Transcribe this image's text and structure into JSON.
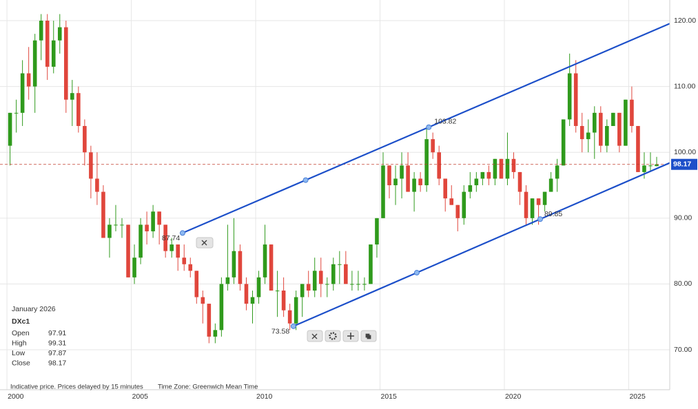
{
  "chart_data": {
    "type": "candlestick",
    "up_color": "#2f9a1c",
    "down_color": "#e0463c",
    "grid": true,
    "xlim": [
      1999.72,
      2026.65
    ],
    "xticks": [
      2000,
      2005,
      2010,
      2015,
      2020,
      2025
    ],
    "ylim": [
      64.04,
      123.14
    ],
    "yticks": [
      {
        "value": 70,
        "label": "70.00"
      },
      {
        "value": 80,
        "label": "80.00"
      },
      {
        "value": 90,
        "label": "90.00"
      },
      {
        "value": 100,
        "label": "100.00"
      },
      {
        "value": 110,
        "label": "110.00"
      },
      {
        "value": 120,
        "label": "120.00"
      }
    ],
    "x": [
      2000,
      2000.25,
      2000.5,
      2000.75,
      2001,
      2001.25,
      2001.5,
      2001.75,
      2002,
      2002.25,
      2002.5,
      2002.75,
      2003,
      2003.25,
      2003.5,
      2003.75,
      2004,
      2004.25,
      2004.5,
      2004.75,
      2005,
      2005.25,
      2005.5,
      2005.75,
      2006,
      2006.25,
      2006.5,
      2006.75,
      2007,
      2007.25,
      2007.5,
      2007.75,
      2008,
      2008.25,
      2008.5,
      2008.75,
      2009,
      2009.25,
      2009.5,
      2009.75,
      2010,
      2010.25,
      2010.5,
      2010.75,
      2011,
      2011.25,
      2011.5,
      2011.75,
      2012,
      2012.25,
      2012.5,
      2012.75,
      2013,
      2013.25,
      2013.5,
      2013.75,
      2014,
      2014.25,
      2014.5,
      2014.75,
      2015,
      2015.25,
      2015.5,
      2015.75,
      2016,
      2016.25,
      2016.5,
      2016.75,
      2017,
      2017.25,
      2017.5,
      2017.75,
      2018,
      2018.25,
      2018.5,
      2018.75,
      2019,
      2019.25,
      2019.5,
      2019.75,
      2020,
      2020.25,
      2020.5,
      2020.75,
      2021,
      2021.25,
      2021.5,
      2021.75,
      2022,
      2022.25,
      2022.5,
      2022.75,
      2023,
      2023.25,
      2023.5,
      2023.75,
      2024,
      2024.25,
      2024.5,
      2024.75,
      2025,
      2025.25,
      2025.5,
      2025.75,
      2026
    ],
    "ohlc": [
      [
        101,
        106,
        98,
        106
      ],
      [
        106,
        108,
        103,
        106
      ],
      [
        106,
        114,
        104,
        112
      ],
      [
        112,
        116,
        108,
        110
      ],
      [
        110,
        118,
        106,
        117
      ],
      [
        117,
        121,
        114,
        120
      ],
      [
        120,
        121,
        111,
        113
      ],
      [
        113,
        120,
        112,
        117
      ],
      [
        117,
        121,
        115,
        119
      ],
      [
        119,
        120,
        106,
        108
      ],
      [
        108,
        111,
        104,
        109
      ],
      [
        109,
        110,
        103,
        104
      ],
      [
        104,
        105,
        98,
        100
      ],
      [
        100,
        101,
        93,
        96
      ],
      [
        96,
        100,
        92,
        94
      ],
      [
        94,
        95,
        87,
        87
      ],
      [
        87,
        90,
        84,
        89
      ],
      [
        89,
        92,
        88,
        89
      ],
      [
        89,
        90,
        87,
        89
      ],
      [
        89,
        89,
        81,
        81
      ],
      [
        81,
        86,
        80,
        84
      ],
      [
        84,
        90,
        83,
        89
      ],
      [
        89,
        91,
        86,
        88
      ],
      [
        88,
        92,
        87,
        91
      ],
      [
        91,
        91,
        86,
        89
      ],
      [
        89,
        89,
        84,
        85
      ],
      [
        85,
        87,
        84,
        86
      ],
      [
        86,
        86,
        82,
        84
      ],
      [
        84,
        86,
        82,
        83
      ],
      [
        83,
        84,
        81,
        82
      ],
      [
        82,
        82,
        77,
        78
      ],
      [
        78,
        79,
        74,
        77
      ],
      [
        77,
        77,
        71,
        72
      ],
      [
        72,
        74,
        71,
        73
      ],
      [
        73,
        81,
        72,
        80
      ],
      [
        80,
        89,
        79,
        81
      ],
      [
        81,
        90,
        80,
        85
      ],
      [
        85,
        86,
        79,
        80
      ],
      [
        80,
        81,
        76,
        77
      ],
      [
        77,
        79,
        74,
        78
      ],
      [
        78,
        82,
        77,
        81
      ],
      [
        81,
        89,
        80,
        86
      ],
      [
        86,
        86,
        79,
        79
      ],
      [
        79,
        82,
        75,
        79
      ],
      [
        79,
        81,
        75,
        76
      ],
      [
        76,
        77,
        73,
        74
      ],
      [
        74,
        79,
        73,
        78
      ],
      [
        78,
        80,
        75,
        80
      ],
      [
        80,
        82,
        78,
        79
      ],
      [
        79,
        84,
        78,
        82
      ],
      [
        82,
        84,
        78,
        80
      ],
      [
        80,
        81,
        78,
        80
      ],
      [
        80,
        84,
        79,
        83
      ],
      [
        83,
        85,
        80,
        83
      ],
      [
        83,
        85,
        80,
        80
      ],
      [
        80,
        82,
        79,
        80
      ],
      [
        80,
        82,
        79,
        80
      ],
      [
        80,
        81,
        79,
        80
      ],
      [
        80,
        86,
        80,
        86
      ],
      [
        86,
        90,
        84,
        90
      ],
      [
        90,
        100,
        90,
        98
      ],
      [
        98,
        98,
        93,
        95
      ],
      [
        95,
        98,
        92,
        96
      ],
      [
        96,
        100,
        93,
        98
      ],
      [
        98,
        100,
        94,
        94
      ],
      [
        94,
        97,
        91,
        96
      ],
      [
        96,
        97,
        94,
        95
      ],
      [
        95,
        104,
        94,
        102
      ],
      [
        102,
        103,
        99,
        100
      ],
      [
        100,
        101,
        95,
        96
      ],
      [
        96,
        96,
        91,
        93
      ],
      [
        93,
        95,
        92,
        92
      ],
      [
        92,
        92,
        88,
        90
      ],
      [
        90,
        95,
        89,
        94
      ],
      [
        94,
        97,
        93,
        95
      ],
      [
        95,
        97,
        94,
        96
      ],
      [
        96,
        97,
        95,
        97
      ],
      [
        97,
        98,
        95,
        96
      ],
      [
        96,
        99,
        95,
        99
      ],
      [
        99,
        99,
        96,
        96
      ],
      [
        96,
        103,
        95,
        99
      ],
      [
        99,
        100,
        96,
        97
      ],
      [
        97,
        97,
        92,
        94
      ],
      [
        94,
        95,
        89,
        90
      ],
      [
        90,
        93,
        89,
        93
      ],
      [
        93,
        93,
        89,
        92
      ],
      [
        92,
        94,
        91,
        94
      ],
      [
        94,
        97,
        94,
        96
      ],
      [
        96,
        99,
        94,
        98
      ],
      [
        98,
        105,
        98,
        105
      ],
      [
        105,
        115,
        104,
        112
      ],
      [
        112,
        114,
        103,
        104
      ],
      [
        104,
        106,
        100,
        102
      ],
      [
        102,
        105,
        100,
        103
      ],
      [
        103,
        107,
        99,
        106
      ],
      [
        106,
        107,
        100,
        101
      ],
      [
        101,
        105,
        100,
        104
      ],
      [
        104,
        106,
        104,
        106
      ],
      [
        106,
        106,
        100,
        101
      ],
      [
        101,
        108,
        101,
        108
      ],
      [
        108,
        110,
        103,
        104
      ],
      [
        104,
        104,
        97,
        97
      ],
      [
        97,
        100,
        96,
        98
      ],
      [
        98,
        100,
        97,
        98
      ],
      [
        97.91,
        99.31,
        97.87,
        98.17
      ]
    ],
    "last_price": 98.17,
    "channel": {
      "color": "#1c4fc9",
      "upper": {
        "x": [
          2007.06,
          2016.96
        ],
        "y": [
          87.74,
          103.82
        ]
      },
      "lower": {
        "x": [
          2011.52,
          2021.44
        ],
        "y": [
          73.58,
          89.85
        ]
      }
    },
    "info": {
      "period": "January 2026",
      "symbol": "DXc1",
      "fields": [
        {
          "label": "Open",
          "value": 97.91
        },
        {
          "label": "High",
          "value": 99.31
        },
        {
          "label": "Low",
          "value": 97.87
        },
        {
          "label": "Close",
          "value": 98.17
        }
      ]
    },
    "footer": {
      "delay_note": "Indicative price. Prices delayed by 15 minutes",
      "timezone": "Time Zone: Greenwich Mean Time"
    }
  }
}
